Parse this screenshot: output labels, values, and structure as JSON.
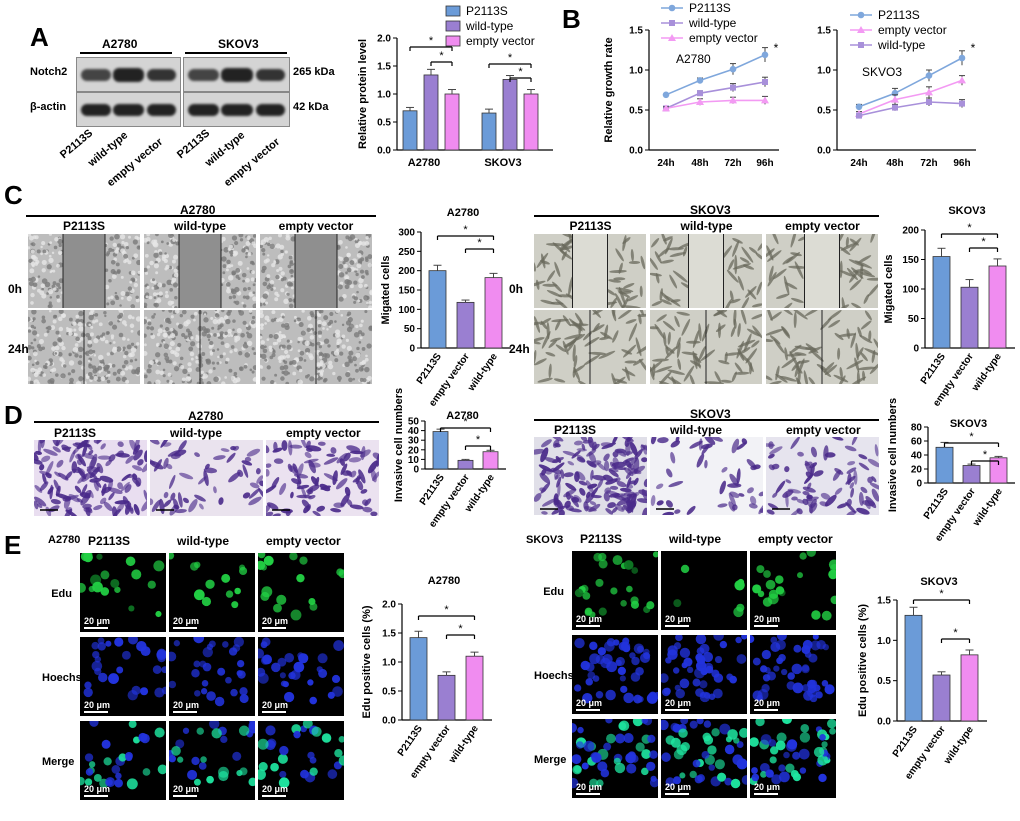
{
  "panel_letters": [
    "A",
    "B",
    "C",
    "D",
    "E"
  ],
  "colors": {
    "p2113s": "#6B9BD8",
    "wild_type": "#9A7FD1",
    "empty_vector": "#F08CF0",
    "line_p2113s": "#7FA7DC",
    "line_wild_type": "#A890DA",
    "line_empty_vector": "#F39AF3",
    "crystal_violet": "#4A2A8A",
    "edu_green": "#22D044",
    "hoechst_blue": "#2233DD"
  },
  "panel_a": {
    "cell_lines": [
      "A2780",
      "SKOV3"
    ],
    "proteins": [
      "Notch2",
      "β-actin"
    ],
    "sizes": [
      "265 kDa",
      "42 kDa"
    ],
    "lanes": [
      "P2113S",
      "wild-type",
      "empty vector"
    ]
  },
  "panel_c": {
    "a2780_title": "A2780",
    "skov3_title": "SKOV3",
    "cols": [
      "P2113S",
      "wild-type",
      "empty vector"
    ],
    "rows": [
      "0h",
      "24h"
    ]
  },
  "panel_d": {
    "a2780_title": "A2780",
    "skov3_title": "SKOV3",
    "cols": [
      "P2113S",
      "wild-type",
      "empty vector"
    ]
  },
  "panel_e": {
    "a2780_title": "A2780",
    "skov3_title": "SKOV3",
    "cols": [
      "P2113S",
      "wild-type",
      "empty vector"
    ],
    "rows": [
      "Edu",
      "Hoechst",
      "Merge"
    ],
    "scale_bar": "20 μm"
  },
  "chart_data": [
    {
      "id": "a-protein",
      "type": "bar",
      "title": "",
      "ylabel": "Relative protein level",
      "categories": [
        "A2780",
        "SKOV3"
      ],
      "series": [
        {
          "name": "P2113S",
          "values": [
            0.7,
            0.66
          ],
          "errors": [
            0.06,
            0.07
          ]
        },
        {
          "name": "wild-type",
          "values": [
            1.34,
            1.26
          ],
          "errors": [
            0.1,
            0.07
          ]
        },
        {
          "name": "empty vector",
          "values": [
            1.0,
            1.0
          ],
          "errors": [
            0.08,
            0.08
          ]
        }
      ],
      "ylim": [
        0,
        2.0
      ],
      "yticks": [
        0.0,
        0.5,
        1.0,
        1.5,
        2.0
      ],
      "significance": [
        "*",
        "*",
        "*",
        "*"
      ],
      "legend": "top"
    },
    {
      "id": "b-a2780",
      "type": "line",
      "annotation": "A2780",
      "ylabel": "Relative growth rate",
      "x": [
        "24h",
        "48h",
        "72h",
        "96h"
      ],
      "series": [
        {
          "name": "P2113S",
          "values": [
            0.69,
            0.87,
            1.01,
            1.19
          ],
          "errors": [
            0.01,
            0.03,
            0.07,
            0.09
          ]
        },
        {
          "name": "wild-type",
          "values": [
            0.52,
            0.71,
            0.78,
            0.85
          ],
          "errors": [
            0.02,
            0.03,
            0.05,
            0.06
          ]
        },
        {
          "name": "empty vector",
          "values": [
            0.52,
            0.6,
            0.62,
            0.62
          ],
          "errors": [
            0.02,
            0.04,
            0.04,
            0.05
          ]
        }
      ],
      "ylim": [
        0.0,
        1.5
      ],
      "yticks": [
        0.0,
        0.5,
        1.0,
        1.5
      ],
      "significance": [
        "*"
      ],
      "legend": "top"
    },
    {
      "id": "b-skov3",
      "type": "line",
      "annotation": "SKVO3",
      "ylabel": "",
      "x": [
        "24h",
        "48h",
        "72h",
        "96h"
      ],
      "series": [
        {
          "name": "P2113S",
          "values": [
            0.54,
            0.71,
            0.93,
            1.15
          ],
          "errors": [
            0.03,
            0.06,
            0.07,
            0.09
          ]
        },
        {
          "name": "empty vector",
          "values": [
            0.45,
            0.63,
            0.72,
            0.87
          ],
          "errors": [
            0.03,
            0.06,
            0.07,
            0.06
          ]
        },
        {
          "name": "wild-type",
          "values": [
            0.43,
            0.53,
            0.6,
            0.58
          ],
          "errors": [
            0.02,
            0.04,
            0.05,
            0.05
          ]
        }
      ],
      "ylim": [
        0.0,
        1.5
      ],
      "yticks": [
        0.0,
        0.5,
        1.0,
        1.5
      ],
      "significance": [
        "*"
      ],
      "legend": "top"
    },
    {
      "id": "c-a2780",
      "type": "bar",
      "title": "A2780",
      "ylabel": "Migated cells",
      "categories": [
        "P2113S",
        "empty vector",
        "wild-type"
      ],
      "values": [
        200,
        118,
        182
      ],
      "errors": [
        14,
        6,
        11
      ],
      "ylim": [
        0,
        300
      ],
      "yticks": [
        0,
        50,
        100,
        150,
        200,
        250,
        300
      ],
      "significance": [
        "*",
        "*"
      ]
    },
    {
      "id": "c-skov3",
      "type": "bar",
      "title": "SKOV3",
      "ylabel": "Migated cells",
      "categories": [
        "P2113S",
        "empty vector",
        "wild-type"
      ],
      "values": [
        155,
        103,
        139
      ],
      "errors": [
        14,
        13,
        12
      ],
      "ylim": [
        0,
        200
      ],
      "yticks": [
        0,
        50,
        100,
        150,
        200
      ],
      "significance": [
        "*",
        "*"
      ]
    },
    {
      "id": "d-a2780",
      "type": "bar",
      "title": "A2780",
      "ylabel": "Invasive cell numbers",
      "categories": [
        "P2113S",
        "empty vector",
        "wild-type"
      ],
      "values": [
        39,
        9,
        18
      ],
      "errors": [
        2.5,
        1,
        1.5
      ],
      "ylim": [
        0,
        50
      ],
      "yticks": [
        0,
        10,
        20,
        30,
        40,
        50
      ],
      "significance": [
        "*",
        "*"
      ]
    },
    {
      "id": "d-skov3",
      "type": "bar",
      "title": "SKOV3",
      "ylabel": "Invasive cell numbers",
      "categories": [
        "P2113S",
        "empty vector",
        "wild-type"
      ],
      "values": [
        51,
        25,
        36
      ],
      "errors": [
        7,
        2,
        2
      ],
      "ylim": [
        0,
        80
      ],
      "yticks": [
        0,
        20,
        40,
        60,
        80
      ],
      "significance": [
        "*",
        "*"
      ]
    },
    {
      "id": "e-a2780",
      "type": "bar",
      "title": "A2780",
      "ylabel": "Edu positive cells (%)",
      "categories": [
        "P2113S",
        "empty vector",
        "wild-type"
      ],
      "values": [
        1.42,
        0.77,
        1.1
      ],
      "errors": [
        0.11,
        0.06,
        0.07
      ],
      "ylim": [
        0,
        2.0
      ],
      "yticks": [
        0.0,
        0.5,
        1.0,
        1.5,
        2.0
      ],
      "significance": [
        "*",
        "*"
      ]
    },
    {
      "id": "e-skov3",
      "type": "bar",
      "title": "SKOV3",
      "ylabel": "Edu positive cells (%)",
      "categories": [
        "P2113S",
        "empty vector",
        "wild-type"
      ],
      "values": [
        1.31,
        0.57,
        0.82
      ],
      "errors": [
        0.1,
        0.04,
        0.06
      ],
      "ylim": [
        0,
        1.5
      ],
      "yticks": [
        0.0,
        0.5,
        1.0,
        1.5
      ],
      "significance": [
        "*",
        "*"
      ]
    }
  ]
}
